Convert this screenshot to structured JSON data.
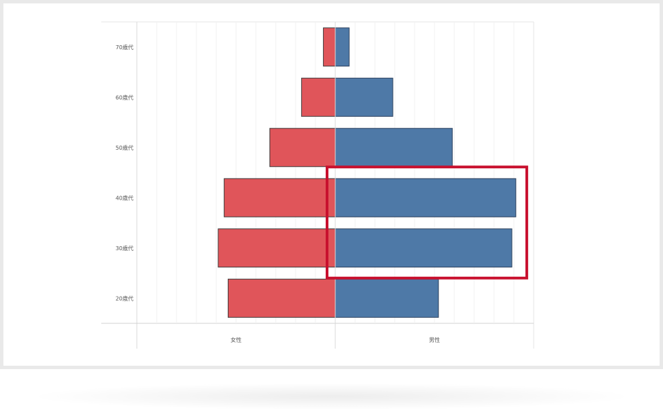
{
  "chart_data": {
    "type": "bar",
    "orientation": "horizontal-diverging",
    "categories": [
      "70歳代",
      "60歳代",
      "50歳代",
      "40歳代",
      "30歳代",
      "20歳代"
    ],
    "series": [
      {
        "name": "女性",
        "values": [
          6,
          17,
          33,
          56,
          59,
          54
        ],
        "color": "#e0555a"
      },
      {
        "name": "男性",
        "values": [
          7,
          29,
          59,
          91,
          89,
          52
        ],
        "color": "#4e79a7"
      }
    ],
    "xlim": [
      -100,
      100
    ],
    "grid": true,
    "highlight": {
      "categories": [
        "40歳代",
        "30歳代"
      ],
      "series": "男性",
      "color": "#c8102e"
    }
  }
}
